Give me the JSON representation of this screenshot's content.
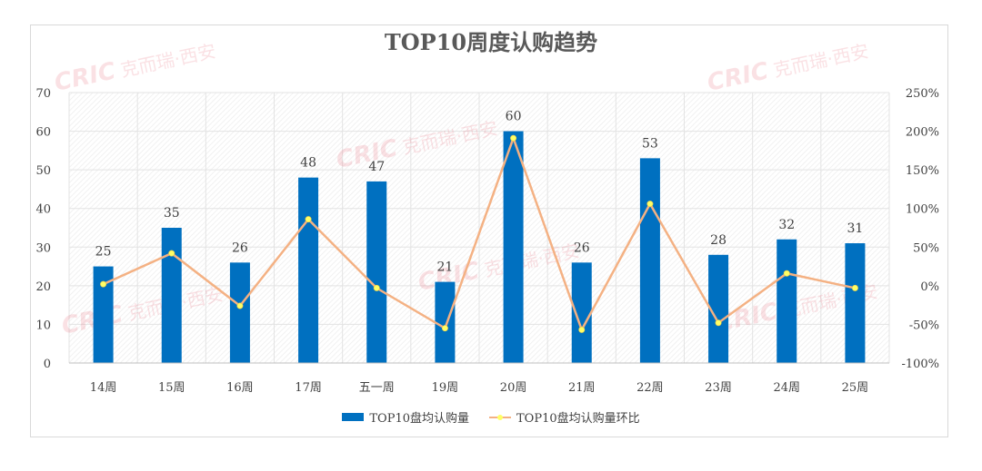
{
  "chart_data": {
    "type": "bar+line",
    "title": "TOP10周度认购趋势",
    "categories": [
      "14周",
      "15周",
      "16周",
      "17周",
      "五一周",
      "19周",
      "20周",
      "21周",
      "22周",
      "23周",
      "24周",
      "25周"
    ],
    "series": [
      {
        "name": "TOP10盘均认购量",
        "type": "bar",
        "axis": "left",
        "color": "#0070c0",
        "values": [
          25,
          35,
          26,
          48,
          47,
          21,
          60,
          26,
          53,
          28,
          32,
          31
        ]
      },
      {
        "name": "TOP10盘均认购量环比",
        "type": "line",
        "axis": "right",
        "color": "#f4b183",
        "marker_color": "#ffff66",
        "values": [
          2,
          42,
          -26,
          86,
          -3,
          -55,
          191,
          -57,
          106,
          -48,
          16,
          -3
        ]
      }
    ],
    "ylim_left": [
      0,
      70
    ],
    "yticks_left": [
      "0",
      "10",
      "20",
      "30",
      "40",
      "50",
      "60",
      "70"
    ],
    "ylim_right": [
      -100,
      250
    ],
    "yticks_right": [
      "-100%",
      "-50%",
      "0%",
      "50%",
      "100%",
      "150%",
      "200%",
      "250%"
    ],
    "grid": true,
    "legend_position": "bottom"
  },
  "watermark": "CRIC 克而瑞·西安"
}
